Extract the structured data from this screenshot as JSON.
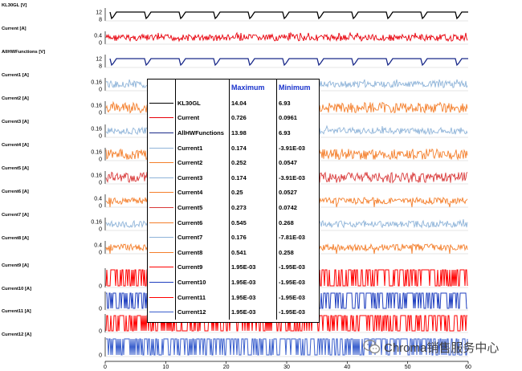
{
  "chart_data": {
    "type": "line",
    "x": {
      "ticks": [
        "0",
        "10",
        "20",
        "30",
        "40",
        "50",
        "60"
      ],
      "range": [
        0,
        60
      ]
    },
    "panels": [
      {
        "name": "KL30GL [V]",
        "color": "#000000",
        "ticks": [
          "12",
          "8"
        ],
        "style": "step",
        "low": 7,
        "high": 12
      },
      {
        "name": "Current [A]",
        "color": "#e8000b",
        "ticks": [
          "0.4",
          "0"
        ],
        "style": "noise",
        "center": 0.25,
        "spread": 0.1
      },
      {
        "name": "AllHWFunctions [V]",
        "color": "#1a2a8a",
        "ticks": [
          "12",
          "8"
        ],
        "style": "step",
        "low": 7,
        "high": 12
      },
      {
        "name": "Current1 [A]",
        "color": "#8fb4d9",
        "ticks": [
          "0.16",
          "0"
        ],
        "style": "noise",
        "center": 0.1,
        "spread": 0.04
      },
      {
        "name": "Current2 [A]",
        "color": "#f47f2c",
        "ticks": [
          "0.16",
          "0"
        ],
        "style": "band",
        "center": 0.16,
        "spread": 0.08
      },
      {
        "name": "Current3 [A]",
        "color": "#8fb4d9",
        "ticks": [
          "0.16",
          "0"
        ],
        "style": "noise",
        "center": 0.1,
        "spread": 0.04
      },
      {
        "name": "Current4 [A]",
        "color": "#f47f2c",
        "ticks": [
          "0.16",
          "0"
        ],
        "style": "band",
        "center": 0.16,
        "spread": 0.08
      },
      {
        "name": "Current5 [A]",
        "color": "#d93a3a",
        "ticks": [
          "0.16",
          "0"
        ],
        "style": "band",
        "center": 0.16,
        "spread": 0.06
      },
      {
        "name": "Current6 [A]",
        "color": "#f47f2c",
        "ticks": [
          "0.4",
          "0"
        ],
        "style": "dips",
        "center": 0.45,
        "spread": 0.06
      },
      {
        "name": "Current7 [A]",
        "color": "#8fb4d9",
        "ticks": [
          "0.16",
          "0"
        ],
        "style": "noise",
        "center": 0.1,
        "spread": 0.04
      },
      {
        "name": "Current8 [A]",
        "color": "#f47f2c",
        "ticks": [
          "0.4",
          "0"
        ],
        "style": "dips",
        "center": 0.45,
        "spread": 0.06
      },
      {
        "name": "Current9 [A]",
        "color": "#ff0000",
        "ticks": [
          "0"
        ],
        "style": "digital",
        "center": 0.5,
        "spread": 0.5
      },
      {
        "name": "Current10 [A]",
        "color": "#1f3fbf",
        "ticks": [
          "0"
        ],
        "style": "digital",
        "center": 0.5,
        "spread": 0.5
      },
      {
        "name": "Current11 [A]",
        "color": "#ff0000",
        "ticks": [
          "0"
        ],
        "style": "digital",
        "center": 0.5,
        "spread": 0.5
      },
      {
        "name": "Current12 [A]",
        "color": "#3a5fcd",
        "ticks": [
          "0"
        ],
        "style": "digital",
        "center": 0.5,
        "spread": 0.5
      }
    ],
    "table": {
      "headers": [
        "Maximum",
        "Minimum"
      ],
      "rows": [
        {
          "name": "KL30GL",
          "color": "#000000",
          "max": "14.04",
          "min": "6.93"
        },
        {
          "name": "Current",
          "color": "#e8000b",
          "max": "0.726",
          "min": "0.0961"
        },
        {
          "name": "AllHWFunctions",
          "color": "#1a2a8a",
          "max": "13.98",
          "min": "6.93"
        },
        {
          "name": "Current1",
          "color": "#8fb4d9",
          "max": "0.174",
          "min": "-3.91E-03"
        },
        {
          "name": "Current2",
          "color": "#f47f2c",
          "max": "0.252",
          "min": "0.0547"
        },
        {
          "name": "Current3",
          "color": "#8fb4d9",
          "max": "0.174",
          "min": "-3.91E-03"
        },
        {
          "name": "Current4",
          "color": "#f47f2c",
          "max": "0.25",
          "min": "0.0527"
        },
        {
          "name": "Current5",
          "color": "#d93a3a",
          "max": "0.273",
          "min": "0.0742"
        },
        {
          "name": "Current6",
          "color": "#f47f2c",
          "max": "0.545",
          "min": "0.268"
        },
        {
          "name": "Current7",
          "color": "#8fb4d9",
          "max": "0.176",
          "min": "-7.81E-03"
        },
        {
          "name": "Current8",
          "color": "#f47f2c",
          "max": "0.541",
          "min": "0.258"
        },
        {
          "name": "Current9",
          "color": "#ff0000",
          "max": "1.95E-03",
          "min": "-1.95E-03"
        },
        {
          "name": "Current10",
          "color": "#1f3fbf",
          "max": "1.95E-03",
          "min": "-1.95E-03"
        },
        {
          "name": "Current11",
          "color": "#ff0000",
          "max": "1.95E-03",
          "min": "-1.95E-03"
        },
        {
          "name": "Current12",
          "color": "#3a5fcd",
          "max": "1.95E-03",
          "min": "-1.95E-03"
        }
      ]
    }
  },
  "watermark": {
    "text": "Chroma销售服务中心",
    "icon": "wechat-icon"
  }
}
